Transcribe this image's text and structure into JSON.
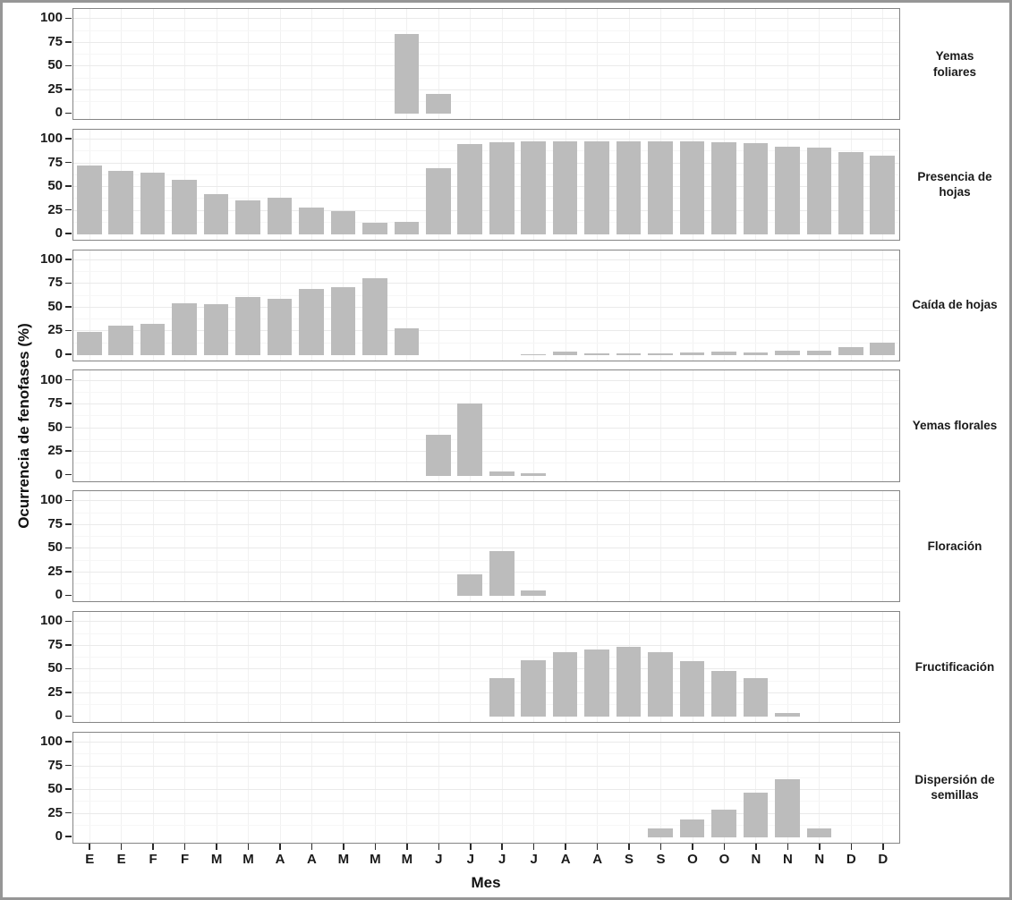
{
  "figure": {
    "ylabel": "Ocurrencia de fenofases (%)",
    "xlabel": "Mes"
  },
  "chart_data": {
    "type": "bar",
    "layout": "faceted-rows",
    "title": "",
    "xlabel": "Mes",
    "ylabel": "Ocurrencia de fenofases (%)",
    "ylim": [
      0,
      100
    ],
    "y_tick_labels": [
      "100",
      "75",
      "50",
      "25",
      "0"
    ],
    "y_tick_values": [
      100,
      75,
      50,
      25,
      0
    ],
    "grid": true,
    "legend_position": "none",
    "bar_color": "#bcbcbc",
    "categories": [
      "E",
      "E",
      "F",
      "F",
      "M",
      "M",
      "A",
      "A",
      "M",
      "M",
      "M",
      "J",
      "J",
      "J",
      "J",
      "A",
      "A",
      "S",
      "S",
      "O",
      "O",
      "N",
      "N",
      "N",
      "D",
      "D"
    ],
    "series": [
      {
        "name": "Yemas foliares",
        "strip_label": "Yemas\nfoliares",
        "values": [
          0,
          0,
          0,
          0,
          0,
          0,
          0,
          0,
          0,
          0,
          84,
          21,
          0,
          0,
          0,
          0,
          0,
          0,
          0,
          0,
          0,
          0,
          0,
          0,
          0,
          0
        ]
      },
      {
        "name": "Presencia de hojas",
        "strip_label": "Presencia de\nhojas",
        "values": [
          73,
          67,
          65,
          58,
          43,
          36,
          39,
          28,
          25,
          12,
          13,
          70,
          95,
          97,
          98,
          98,
          98,
          98,
          98,
          98,
          97,
          96,
          93,
          92,
          87,
          83
        ]
      },
      {
        "name": "Caída de hojas",
        "strip_label": "Caída de hojas",
        "values": [
          24,
          31,
          33,
          55,
          54,
          61,
          59,
          70,
          72,
          81,
          28,
          0,
          0,
          0,
          1,
          4,
          2,
          2,
          2,
          3,
          4,
          3,
          5,
          5,
          8,
          13
        ]
      },
      {
        "name": "Yemas florales",
        "strip_label": "Yemas florales",
        "values": [
          0,
          0,
          0,
          0,
          0,
          0,
          0,
          0,
          0,
          0,
          0,
          43,
          76,
          4,
          3,
          0,
          0,
          0,
          0,
          0,
          0,
          0,
          0,
          0,
          0,
          0
        ]
      },
      {
        "name": "Floración",
        "strip_label": "Floración",
        "values": [
          0,
          0,
          0,
          0,
          0,
          0,
          0,
          0,
          0,
          0,
          0,
          0,
          23,
          48,
          6,
          0,
          0,
          0,
          0,
          0,
          0,
          0,
          0,
          0,
          0,
          0
        ]
      },
      {
        "name": "Fructificación",
        "strip_label": "Fructificación",
        "values": [
          0,
          0,
          0,
          0,
          0,
          0,
          0,
          0,
          0,
          0,
          0,
          0,
          0,
          41,
          60,
          68,
          71,
          74,
          68,
          59,
          48,
          41,
          4,
          0,
          0,
          0
        ]
      },
      {
        "name": "Dispersión de semillas",
        "strip_label": "Dispersión de\nsemillas",
        "values": [
          0,
          0,
          0,
          0,
          0,
          0,
          0,
          0,
          0,
          0,
          0,
          0,
          0,
          0,
          0,
          0,
          0,
          0,
          10,
          19,
          29,
          47,
          61,
          10,
          0,
          0
        ]
      }
    ]
  }
}
